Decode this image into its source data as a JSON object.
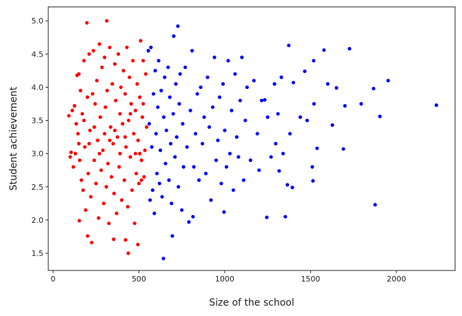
{
  "chart_data": {
    "type": "scatter",
    "x_label": "Size of the school",
    "y_label": "Student achievement",
    "xlim": [
      -28,
      2342
    ],
    "ylim": [
      1.24,
      5.21
    ],
    "xticks": [
      0,
      500,
      1000,
      1500,
      2000
    ],
    "yticks": [
      1.5,
      {
        "value": 2,
        "label": "2.0"
      },
      2.5,
      {
        "value": 3,
        "label": "3.0"
      },
      3.5,
      {
        "value": 4,
        "label": "4.0"
      },
      4.5,
      {
        "value": 5,
        "label": "5.0"
      }
    ],
    "series": [
      {
        "color": "#ff0000",
        "x": [
          92,
          100,
          105,
          112,
          118,
          125,
          130,
          135,
          140,
          145,
          150,
          153,
          155,
          160,
          165,
          170,
          175,
          180,
          185,
          190,
          197,
          200,
          201,
          205,
          210,
          215,
          220,
          225,
          230,
          235,
          240,
          245,
          250,
          255,
          260,
          265,
          270,
          275,
          280,
          285,
          290,
          295,
          300,
          305,
          310,
          313,
          315,
          320,
          325,
          330,
          335,
          340,
          345,
          350,
          353,
          355,
          360,
          365,
          370,
          375,
          380,
          385,
          390,
          395,
          400,
          405,
          410,
          415,
          420,
          422,
          425,
          430,
          435,
          438,
          440,
          445,
          450,
          455,
          460,
          465,
          470,
          475,
          480,
          485,
          490,
          494,
          495,
          500,
          505,
          510,
          515,
          520,
          525,
          530,
          535,
          540,
          545,
          515,
          525,
          505,
          480,
          450,
          420,
          390,
          360,
          330,
          300,
          270,
          240,
          210,
          180,
          150
        ],
        "values": [
          3.57,
          2.95,
          3.02,
          3.65,
          2.8,
          3.72,
          3.0,
          3.45,
          4.18,
          3.3,
          4.2,
          1.99,
          2.9,
          3.95,
          2.6,
          3.6,
          2.45,
          4.4,
          3.1,
          2.15,
          4.97,
          3.85,
          1.76,
          2.7,
          4.5,
          3.35,
          2.35,
          1.66,
          3.9,
          4.55,
          2.9,
          3.75,
          2.55,
          4.1,
          3.2,
          2.03,
          4.65,
          3.55,
          2.75,
          4.3,
          3.05,
          2.25,
          4.45,
          3.7,
          2.5,
          5.0,
          3.95,
          2.85,
          1.95,
          4.6,
          3.4,
          2.65,
          4.05,
          3.15,
          1.71,
          2.4,
          4.35,
          3.8,
          2.1,
          3.25,
          4.5,
          2.8,
          3.6,
          4.0,
          2.3,
          3.45,
          4.25,
          2.6,
          3.9,
          1.7,
          3.1,
          4.6,
          2.2,
          1.5,
          3.5,
          4.15,
          2.95,
          3.75,
          2.45,
          4.4,
          3.3,
          1.95,
          3.65,
          2.7,
          4.05,
          1.63,
          3.2,
          2.55,
          3.85,
          4.7,
          2.9,
          3.55,
          4.4,
          2.65,
          3.05,
          4.2,
          3.4,
          2.6,
          3.75,
          3.0,
          3.0,
          3.6,
          3.25,
          3.0,
          3.35,
          3.2,
          3.3,
          3.0,
          3.4,
          3.15,
          3.5,
          3.15
        ]
      },
      {
        "color": "#0000ff",
        "x": [
          555,
          560,
          565,
          570,
          575,
          580,
          585,
          590,
          595,
          600,
          605,
          610,
          615,
          620,
          625,
          630,
          635,
          643,
          645,
          650,
          655,
          660,
          670,
          675,
          680,
          685,
          690,
          695,
          700,
          703,
          710,
          715,
          720,
          727,
          730,
          735,
          740,
          750,
          755,
          760,
          770,
          780,
          791,
          800,
          810,
          815,
          820,
          830,
          840,
          850,
          860,
          870,
          880,
          890,
          900,
          910,
          920,
          930,
          940,
          950,
          960,
          970,
          980,
          990,
          996,
          1000,
          1010,
          1020,
          1030,
          1040,
          1050,
          1060,
          1070,
          1080,
          1090,
          1100,
          1110,
          1120,
          1130,
          1150,
          1170,
          1190,
          1200,
          1215,
          1233,
          1245,
          1250,
          1270,
          1290,
          1297,
          1310,
          1317,
          1330,
          1340,
          1353,
          1365,
          1373,
          1380,
          1394,
          1400,
          1440,
          1466,
          1480,
          1510,
          1514,
          1518,
          1520,
          1538,
          1578,
          1600,
          1627,
          1651,
          1691,
          1700,
          1727,
          1795,
          1867,
          1876,
          1904,
          1952,
          2233
        ],
        "values": [
          4.55,
          3.45,
          2.3,
          4.6,
          3.1,
          2.45,
          3.9,
          2.1,
          4.25,
          3.3,
          2.7,
          3.7,
          4.4,
          2.55,
          3.05,
          3.95,
          2.35,
          1.42,
          3.55,
          4.15,
          2.85,
          3.35,
          4.3,
          2.6,
          3.85,
          3.15,
          2.25,
          1.76,
          3.6,
          4.77,
          2.95,
          4.05,
          3.25,
          4.92,
          2.5,
          3.75,
          4.2,
          2.15,
          3.45,
          2.8,
          4.3,
          3.1,
          1.97,
          3.65,
          4.55,
          2.05,
          2.8,
          3.3,
          3.9,
          2.6,
          4.0,
          3.15,
          3.55,
          2.7,
          4.15,
          3.4,
          2.3,
          3.7,
          4.45,
          2.9,
          3.2,
          3.85,
          2.55,
          4.05,
          2.12,
          3.35,
          2.8,
          4.4,
          3.0,
          3.65,
          2.45,
          4.2,
          3.25,
          2.95,
          3.8,
          4.45,
          2.6,
          3.5,
          4.0,
          2.9,
          4.1,
          3.3,
          2.75,
          3.8,
          3.81,
          2.04,
          3.55,
          2.95,
          4.05,
          3.15,
          3.6,
          2.74,
          4.15,
          3.0,
          2.05,
          2.53,
          4.63,
          3.3,
          2.49,
          4.07,
          3.55,
          4.24,
          3.5,
          2.8,
          2.59,
          4.4,
          3.75,
          3.08,
          4.56,
          4.05,
          3.43,
          3.99,
          3.07,
          3.72,
          4.58,
          3.75,
          3.98,
          2.23,
          3.56,
          4.1,
          3.73
        ]
      }
    ]
  }
}
